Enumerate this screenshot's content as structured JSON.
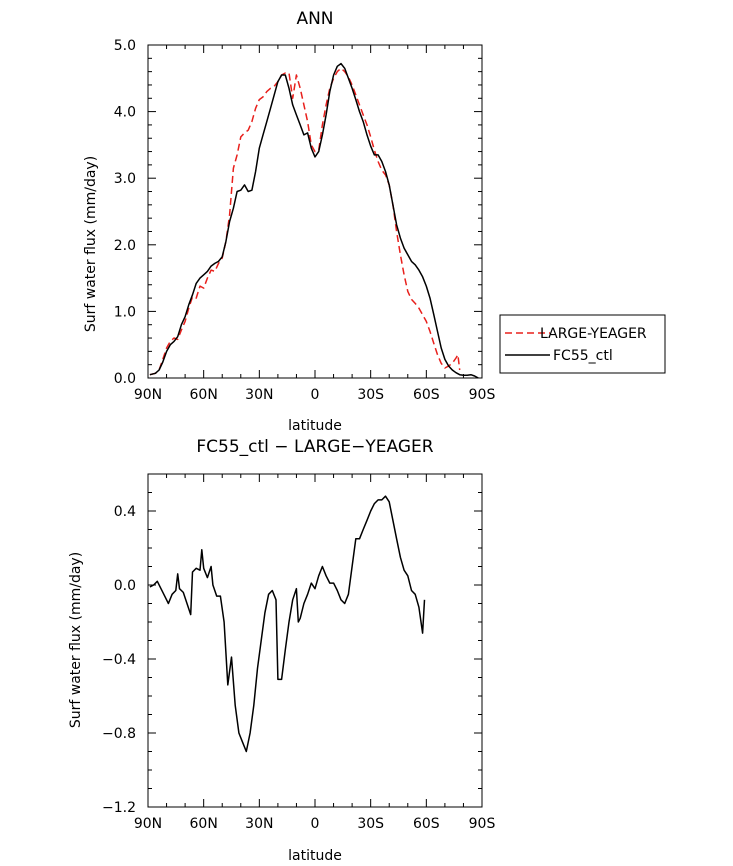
{
  "chart_data": [
    {
      "type": "line",
      "title": "ANN",
      "xlabel": "latitude",
      "ylabel": "Surf water flux (mm/day)",
      "xlim": [
        90,
        -90
      ],
      "ylim": [
        0,
        5
      ],
      "x_ticks": [
        {
          "value": 90,
          "label": "90N"
        },
        {
          "value": 60,
          "label": "60N"
        },
        {
          "value": 30,
          "label": "30N"
        },
        {
          "value": 0,
          "label": "0"
        },
        {
          "value": -30,
          "label": "30S"
        },
        {
          "value": -60,
          "label": "60S"
        },
        {
          "value": -90,
          "label": "90S"
        }
      ],
      "y_ticks": [
        {
          "value": 0,
          "label": "0.0"
        },
        {
          "value": 1,
          "label": "1.0"
        },
        {
          "value": 2,
          "label": "2.0"
        },
        {
          "value": 3,
          "label": "3.0"
        },
        {
          "value": 4,
          "label": "4.0"
        },
        {
          "value": 5,
          "label": "5.0"
        }
      ],
      "legend_position": "right",
      "grid": false,
      "series": [
        {
          "name": "LARGE-YEAGER",
          "color": "#e8201c",
          "dash": "dashed",
          "points": [
            [
              89,
              0.05
            ],
            [
              86,
              0.07
            ],
            [
              84,
              0.12
            ],
            [
              82,
              0.28
            ],
            [
              80,
              0.45
            ],
            [
              78,
              0.55
            ],
            [
              76,
              0.6
            ],
            [
              74,
              0.58
            ],
            [
              72,
              0.72
            ],
            [
              70,
              0.85
            ],
            [
              68,
              1.05
            ],
            [
              66,
              1.22
            ],
            [
              64,
              1.2
            ],
            [
              62,
              1.38
            ],
            [
              60,
              1.35
            ],
            [
              58,
              1.5
            ],
            [
              56,
              1.62
            ],
            [
              54,
              1.6
            ],
            [
              52,
              1.72
            ],
            [
              50,
              1.8
            ],
            [
              48,
              2.05
            ],
            [
              46,
              2.45
            ],
            [
              44,
              3.15
            ],
            [
              42,
              3.35
            ],
            [
              40,
              3.62
            ],
            [
              38,
              3.68
            ],
            [
              36,
              3.72
            ],
            [
              34,
              3.85
            ],
            [
              32,
              4.05
            ],
            [
              30,
              4.18
            ],
            [
              28,
              4.22
            ],
            [
              26,
              4.3
            ],
            [
              24,
              4.35
            ],
            [
              22,
              4.38
            ],
            [
              20,
              4.45
            ],
            [
              18,
              4.55
            ],
            [
              16,
              4.58
            ],
            [
              14,
              4.58
            ],
            [
              12,
              4.2
            ],
            [
              10,
              4.55
            ],
            [
              8,
              4.35
            ],
            [
              6,
              4.1
            ],
            [
              4,
              3.85
            ],
            [
              2,
              3.5
            ],
            [
              0,
              3.4
            ],
            [
              -2,
              3.42
            ],
            [
              -4,
              3.8
            ],
            [
              -6,
              4.1
            ],
            [
              -8,
              4.35
            ],
            [
              -10,
              4.5
            ],
            [
              -12,
              4.6
            ],
            [
              -14,
              4.65
            ],
            [
              -16,
              4.6
            ],
            [
              -18,
              4.52
            ],
            [
              -20,
              4.4
            ],
            [
              -22,
              4.25
            ],
            [
              -24,
              4.1
            ],
            [
              -26,
              3.95
            ],
            [
              -28,
              3.8
            ],
            [
              -30,
              3.62
            ],
            [
              -32,
              3.42
            ],
            [
              -34,
              3.25
            ],
            [
              -36,
              3.12
            ],
            [
              -38,
              3.05
            ],
            [
              -40,
              2.9
            ],
            [
              -42,
              2.6
            ],
            [
              -44,
              2.2
            ],
            [
              -46,
              1.85
            ],
            [
              -48,
              1.55
            ],
            [
              -50,
              1.3
            ],
            [
              -52,
              1.18
            ],
            [
              -54,
              1.12
            ],
            [
              -56,
              1.05
            ],
            [
              -58,
              0.95
            ],
            [
              -60,
              0.85
            ],
            [
              -62,
              0.7
            ],
            [
              -64,
              0.52
            ],
            [
              -66,
              0.35
            ],
            [
              -68,
              0.22
            ],
            [
              -70,
              0.15
            ],
            [
              -72,
              0.18
            ],
            [
              -74,
              0.22
            ],
            [
              -76,
              0.3
            ],
            [
              -77,
              0.35
            ],
            [
              -78,
              0.12
            ]
          ]
        },
        {
          "name": "FC55_ctl",
          "color": "#000000",
          "dash": "solid",
          "points": [
            [
              89,
              0.05
            ],
            [
              86,
              0.07
            ],
            [
              84,
              0.12
            ],
            [
              82,
              0.24
            ],
            [
              80,
              0.4
            ],
            [
              78,
              0.5
            ],
            [
              76,
              0.55
            ],
            [
              74,
              0.62
            ],
            [
              72,
              0.8
            ],
            [
              70,
              0.92
            ],
            [
              68,
              1.1
            ],
            [
              66,
              1.25
            ],
            [
              64,
              1.42
            ],
            [
              62,
              1.5
            ],
            [
              60,
              1.55
            ],
            [
              58,
              1.6
            ],
            [
              56,
              1.68
            ],
            [
              54,
              1.72
            ],
            [
              52,
              1.75
            ],
            [
              50,
              1.82
            ],
            [
              48,
              2.05
            ],
            [
              46,
              2.35
            ],
            [
              44,
              2.55
            ],
            [
              42,
              2.8
            ],
            [
              40,
              2.82
            ],
            [
              38,
              2.9
            ],
            [
              36,
              2.8
            ],
            [
              34,
              2.82
            ],
            [
              32,
              3.1
            ],
            [
              30,
              3.45
            ],
            [
              28,
              3.65
            ],
            [
              26,
              3.85
            ],
            [
              24,
              4.05
            ],
            [
              22,
              4.25
            ],
            [
              20,
              4.45
            ],
            [
              18,
              4.55
            ],
            [
              16,
              4.55
            ],
            [
              14,
              4.35
            ],
            [
              12,
              4.1
            ],
            [
              10,
              3.95
            ],
            [
              8,
              3.8
            ],
            [
              6,
              3.65
            ],
            [
              4,
              3.68
            ],
            [
              2,
              3.45
            ],
            [
              0,
              3.32
            ],
            [
              -2,
              3.4
            ],
            [
              -4,
              3.65
            ],
            [
              -6,
              3.95
            ],
            [
              -8,
              4.3
            ],
            [
              -10,
              4.55
            ],
            [
              -12,
              4.68
            ],
            [
              -14,
              4.72
            ],
            [
              -16,
              4.65
            ],
            [
              -18,
              4.5
            ],
            [
              -20,
              4.35
            ],
            [
              -22,
              4.18
            ],
            [
              -24,
              4.0
            ],
            [
              -26,
              3.85
            ],
            [
              -28,
              3.65
            ],
            [
              -30,
              3.48
            ],
            [
              -32,
              3.35
            ],
            [
              -34,
              3.35
            ],
            [
              -36,
              3.25
            ],
            [
              -38,
              3.1
            ],
            [
              -40,
              2.9
            ],
            [
              -42,
              2.6
            ],
            [
              -44,
              2.3
            ],
            [
              -46,
              2.1
            ],
            [
              -48,
              1.95
            ],
            [
              -50,
              1.85
            ],
            [
              -52,
              1.75
            ],
            [
              -54,
              1.7
            ],
            [
              -56,
              1.62
            ],
            [
              -58,
              1.52
            ],
            [
              -60,
              1.38
            ],
            [
              -62,
              1.2
            ],
            [
              -64,
              0.95
            ],
            [
              -66,
              0.7
            ],
            [
              -68,
              0.45
            ],
            [
              -70,
              0.28
            ],
            [
              -72,
              0.18
            ],
            [
              -74,
              0.12
            ],
            [
              -76,
              0.08
            ],
            [
              -78,
              0.05
            ],
            [
              -80,
              0.04
            ],
            [
              -82,
              0.04
            ],
            [
              -84,
              0.05
            ],
            [
              -86,
              0.03
            ],
            [
              -88,
              0.0
            ]
          ]
        }
      ]
    },
    {
      "type": "line",
      "title": "FC55_ctl − LARGE−YEAGER",
      "xlabel": "latitude",
      "ylabel": "Surf water flux (mm/day)",
      "xlim": [
        90,
        -90
      ],
      "ylim": [
        -1.2,
        0.6
      ],
      "x_ticks": [
        {
          "value": 90,
          "label": "90N"
        },
        {
          "value": 60,
          "label": "60N"
        },
        {
          "value": 30,
          "label": "30N"
        },
        {
          "value": 0,
          "label": "0"
        },
        {
          "value": -30,
          "label": "30S"
        },
        {
          "value": -60,
          "label": "60S"
        },
        {
          "value": -90,
          "label": "90S"
        }
      ],
      "y_ticks": [
        {
          "value": -1.2,
          "label": "−1.2"
        },
        {
          "value": -0.8,
          "label": "−0.8"
        },
        {
          "value": -0.4,
          "label": "−0.4"
        },
        {
          "value": 0,
          "label": "0.0"
        },
        {
          "value": 0.4,
          "label": "0.4"
        }
      ],
      "grid": false,
      "series": [
        {
          "color": "#000000",
          "dash": "solid",
          "points": [
            [
              89,
              -0.01
            ],
            [
              87,
              0.0
            ],
            [
              85,
              0.02
            ],
            [
              83,
              -0.02
            ],
            [
              81,
              -0.06
            ],
            [
              79,
              -0.1
            ],
            [
              77,
              -0.05
            ],
            [
              75,
              -0.03
            ],
            [
              74,
              0.06
            ],
            [
              73,
              -0.02
            ],
            [
              71,
              -0.04
            ],
            [
              69,
              -0.1
            ],
            [
              67,
              -0.16
            ],
            [
              66,
              0.07
            ],
            [
              64,
              0.09
            ],
            [
              62,
              0.08
            ],
            [
              61,
              0.19
            ],
            [
              60,
              0.09
            ],
            [
              58,
              0.04
            ],
            [
              56,
              0.1
            ],
            [
              55,
              0.0
            ],
            [
              53,
              -0.06
            ],
            [
              51,
              -0.06
            ],
            [
              49,
              -0.2
            ],
            [
              47,
              -0.54
            ],
            [
              45,
              -0.39
            ],
            [
              43,
              -0.65
            ],
            [
              41,
              -0.8
            ],
            [
              39,
              -0.85
            ],
            [
              37,
              -0.9
            ],
            [
              35,
              -0.8
            ],
            [
              33,
              -0.65
            ],
            [
              31,
              -0.45
            ],
            [
              29,
              -0.3
            ],
            [
              27,
              -0.15
            ],
            [
              25,
              -0.05
            ],
            [
              23,
              -0.03
            ],
            [
              21,
              -0.08
            ],
            [
              20,
              -0.51
            ],
            [
              18,
              -0.51
            ],
            [
              16,
              -0.35
            ],
            [
              14,
              -0.2
            ],
            [
              12,
              -0.08
            ],
            [
              10,
              -0.02
            ],
            [
              9,
              -0.2
            ],
            [
              8,
              -0.18
            ],
            [
              6,
              -0.1
            ],
            [
              4,
              -0.05
            ],
            [
              2,
              0.01
            ],
            [
              0,
              -0.02
            ],
            [
              -2,
              0.05
            ],
            [
              -4,
              0.1
            ],
            [
              -6,
              0.05
            ],
            [
              -8,
              0.01
            ],
            [
              -10,
              0.01
            ],
            [
              -12,
              -0.03
            ],
            [
              -14,
              -0.08
            ],
            [
              -16,
              -0.1
            ],
            [
              -18,
              -0.05
            ],
            [
              -20,
              0.1
            ],
            [
              -22,
              0.25
            ],
            [
              -24,
              0.25
            ],
            [
              -26,
              0.3
            ],
            [
              -28,
              0.35
            ],
            [
              -30,
              0.4
            ],
            [
              -32,
              0.44
            ],
            [
              -34,
              0.46
            ],
            [
              -36,
              0.46
            ],
            [
              -38,
              0.48
            ],
            [
              -40,
              0.45
            ],
            [
              -42,
              0.35
            ],
            [
              -44,
              0.25
            ],
            [
              -46,
              0.15
            ],
            [
              -48,
              0.08
            ],
            [
              -50,
              0.05
            ],
            [
              -52,
              -0.03
            ],
            [
              -54,
              -0.05
            ],
            [
              -56,
              -0.12
            ],
            [
              -58,
              -0.26
            ],
            [
              -59,
              -0.08
            ]
          ]
        }
      ]
    }
  ]
}
